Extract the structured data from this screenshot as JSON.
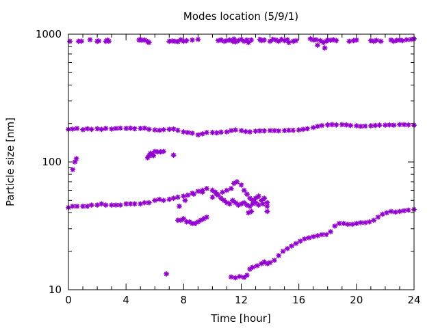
{
  "chart_data": {
    "type": "scatter",
    "title": "Modes location (5/9/1)",
    "xlabel": "Time [hour]",
    "ylabel": "Particle size [nm]",
    "xlim": [
      0,
      24
    ],
    "ylim": [
      10,
      1000
    ],
    "y_scale": "log",
    "x_ticks": [
      0,
      4,
      8,
      12,
      16,
      20,
      24
    ],
    "x_tick_labels": [
      "0",
      "4",
      "8",
      "12",
      "16",
      "20",
      "24"
    ],
    "y_ticks": [
      10,
      100,
      1000
    ],
    "y_tick_labels": [
      "10",
      "100",
      "1000"
    ],
    "grid": false,
    "legend": "none",
    "marker_color": "#9400d3",
    "series": [
      {
        "points": [
          [
            0.1,
            880
          ],
          [
            0.7,
            880
          ],
          [
            0.9,
            882
          ],
          [
            1.5,
            905
          ],
          [
            2.0,
            880
          ],
          [
            2.1,
            885
          ],
          [
            2.6,
            880
          ],
          [
            2.7,
            900
          ],
          [
            2.8,
            882
          ],
          [
            4.9,
            900
          ],
          [
            5.0,
            910
          ],
          [
            5.1,
            895
          ],
          [
            5.3,
            900
          ],
          [
            5.5,
            875
          ],
          [
            5.6,
            860
          ],
          [
            7.0,
            880
          ],
          [
            7.2,
            885
          ],
          [
            7.4,
            880
          ],
          [
            7.6,
            875
          ],
          [
            7.8,
            905
          ],
          [
            8.0,
            880
          ],
          [
            8.2,
            890
          ],
          [
            8.6,
            900
          ],
          [
            9.0,
            910
          ],
          [
            10.4,
            890
          ],
          [
            10.6,
            900
          ],
          [
            10.8,
            880
          ],
          [
            11.0,
            890
          ],
          [
            11.2,
            900
          ],
          [
            11.4,
            880
          ],
          [
            11.5,
            915
          ],
          [
            11.6,
            870
          ],
          [
            11.8,
            890
          ],
          [
            12.0,
            910
          ],
          [
            12.2,
            880
          ],
          [
            12.4,
            900
          ],
          [
            12.5,
            860
          ],
          [
            12.7,
            900
          ],
          [
            13.3,
            910
          ],
          [
            13.4,
            890
          ],
          [
            13.6,
            900
          ],
          [
            14.0,
            880
          ],
          [
            14.2,
            910
          ],
          [
            14.4,
            900
          ],
          [
            14.6,
            880
          ],
          [
            14.8,
            910
          ],
          [
            15.0,
            890
          ],
          [
            15.2,
            905
          ],
          [
            15.3,
            860
          ],
          [
            15.6,
            880
          ],
          [
            15.8,
            890
          ],
          [
            16.8,
            920
          ],
          [
            17.0,
            900
          ],
          [
            17.2,
            905
          ],
          [
            17.3,
            820
          ],
          [
            17.5,
            890
          ],
          [
            17.7,
            860
          ],
          [
            17.8,
            780
          ],
          [
            17.9,
            880
          ],
          [
            18.0,
            900
          ],
          [
            18.2,
            895
          ],
          [
            18.4,
            905
          ],
          [
            18.6,
            890
          ],
          [
            19.5,
            880
          ],
          [
            19.8,
            890
          ],
          [
            20.0,
            900
          ],
          [
            21.0,
            890
          ],
          [
            21.2,
            880
          ],
          [
            21.4,
            895
          ],
          [
            21.7,
            880
          ],
          [
            22.4,
            900
          ],
          [
            22.6,
            880
          ],
          [
            22.8,
            895
          ],
          [
            23.0,
            900
          ],
          [
            23.2,
            890
          ],
          [
            23.5,
            905
          ],
          [
            23.8,
            910
          ],
          [
            24.0,
            920
          ]
        ]
      },
      {
        "points": [
          [
            0.0,
            180
          ],
          [
            0.3,
            181
          ],
          [
            0.6,
            183
          ],
          [
            1.0,
            179
          ],
          [
            1.3,
            182
          ],
          [
            1.6,
            180
          ],
          [
            2.0,
            182
          ],
          [
            2.3,
            180
          ],
          [
            2.6,
            183
          ],
          [
            3.0,
            181
          ],
          [
            3.3,
            183
          ],
          [
            3.6,
            184
          ],
          [
            4.0,
            183
          ],
          [
            4.3,
            184
          ],
          [
            4.6,
            182
          ],
          [
            5.0,
            183
          ],
          [
            5.3,
            184
          ],
          [
            5.6,
            180
          ],
          [
            6.0,
            178
          ],
          [
            6.3,
            177
          ],
          [
            6.6,
            179
          ],
          [
            7.0,
            180
          ],
          [
            7.3,
            181
          ],
          [
            7.6,
            177
          ],
          [
            8.0,
            172
          ],
          [
            8.3,
            170
          ],
          [
            8.6,
            168
          ],
          [
            9.0,
            163
          ],
          [
            9.3,
            166
          ],
          [
            9.6,
            170
          ],
          [
            10.0,
            170
          ],
          [
            10.3,
            169
          ],
          [
            10.6,
            171
          ],
          [
            11.0,
            172
          ],
          [
            11.3,
            176
          ],
          [
            11.6,
            178
          ],
          [
            12.0,
            176
          ],
          [
            12.3,
            173
          ],
          [
            12.6,
            172
          ],
          [
            13.0,
            174
          ],
          [
            13.3,
            175
          ],
          [
            13.6,
            175
          ],
          [
            14.0,
            176
          ],
          [
            14.3,
            176
          ],
          [
            14.6,
            175
          ],
          [
            15.0,
            176
          ],
          [
            15.3,
            177
          ],
          [
            15.6,
            177
          ],
          [
            16.0,
            178
          ],
          [
            16.3,
            180
          ],
          [
            16.6,
            182
          ],
          [
            17.0,
            186
          ],
          [
            17.3,
            190
          ],
          [
            17.6,
            193
          ],
          [
            18.0,
            195
          ],
          [
            18.3,
            196
          ],
          [
            18.6,
            195
          ],
          [
            19.0,
            196
          ],
          [
            19.3,
            195
          ],
          [
            19.6,
            193
          ],
          [
            20.0,
            192
          ],
          [
            20.3,
            190
          ],
          [
            20.6,
            191
          ],
          [
            21.0,
            192
          ],
          [
            21.3,
            193
          ],
          [
            21.6,
            194
          ],
          [
            22.0,
            194
          ],
          [
            22.3,
            195
          ],
          [
            22.6,
            194
          ],
          [
            23.0,
            196
          ],
          [
            23.3,
            196
          ],
          [
            23.6,
            195
          ],
          [
            24.0,
            194
          ]
        ]
      },
      {
        "points": [
          [
            0.3,
            87
          ],
          [
            0.45,
            100
          ],
          [
            0.55,
            106
          ],
          [
            5.5,
            108
          ],
          [
            5.6,
            112
          ],
          [
            5.7,
            117
          ],
          [
            5.8,
            115
          ],
          [
            5.9,
            112
          ],
          [
            6.0,
            121
          ],
          [
            6.2,
            120
          ],
          [
            6.4,
            120
          ],
          [
            6.6,
            121
          ],
          [
            7.3,
            113
          ]
        ]
      },
      {
        "points": [
          [
            0.0,
            44
          ],
          [
            0.3,
            45
          ],
          [
            0.6,
            45
          ],
          [
            1.0,
            45
          ],
          [
            1.3,
            45
          ],
          [
            1.6,
            46
          ],
          [
            2.0,
            46
          ],
          [
            2.3,
            47
          ],
          [
            2.6,
            46
          ],
          [
            3.0,
            46
          ],
          [
            3.3,
            46
          ],
          [
            3.6,
            46
          ],
          [
            4.0,
            47
          ],
          [
            4.3,
            47
          ],
          [
            4.6,
            47
          ],
          [
            5.0,
            47
          ],
          [
            5.3,
            48
          ],
          [
            5.6,
            48
          ],
          [
            6.0,
            50
          ],
          [
            6.3,
            51
          ],
          [
            6.6,
            50
          ],
          [
            7.0,
            51
          ],
          [
            7.3,
            52
          ],
          [
            7.6,
            53
          ],
          [
            8.0,
            54
          ],
          [
            8.3,
            55
          ],
          [
            8.6,
            57
          ],
          [
            9.0,
            59
          ],
          [
            9.3,
            60
          ],
          [
            9.6,
            62
          ],
          [
            10.0,
            60
          ],
          [
            10.2,
            58
          ],
          [
            10.4,
            55
          ],
          [
            10.6,
            52
          ],
          [
            10.8,
            50
          ],
          [
            11.0,
            48
          ],
          [
            11.2,
            47
          ],
          [
            11.4,
            50
          ],
          [
            11.6,
            48
          ],
          [
            11.8,
            46
          ],
          [
            12.0,
            47
          ],
          [
            12.2,
            48
          ],
          [
            12.4,
            46
          ],
          [
            12.6,
            45
          ],
          [
            12.8,
            47
          ],
          [
            13.0,
            48
          ],
          [
            13.2,
            46
          ],
          [
            13.5,
            47
          ],
          [
            13.8,
            45
          ]
        ]
      },
      {
        "points": [
          [
            7.6,
            35
          ],
          [
            7.8,
            35
          ],
          [
            8.0,
            36
          ],
          [
            8.2,
            34
          ],
          [
            8.4,
            34
          ],
          [
            8.6,
            33
          ],
          [
            8.8,
            33
          ],
          [
            9.0,
            34
          ],
          [
            9.2,
            35
          ],
          [
            9.4,
            36
          ],
          [
            9.6,
            37
          ],
          [
            7.7,
            45
          ],
          [
            8.1,
            50
          ],
          [
            8.7,
            56
          ],
          [
            9.3,
            58
          ],
          [
            10.0,
            53
          ],
          [
            10.3,
            56
          ],
          [
            10.7,
            58
          ],
          [
            11.0,
            60
          ],
          [
            11.3,
            62
          ],
          [
            11.5,
            68
          ],
          [
            11.7,
            70
          ],
          [
            12.0,
            66
          ],
          [
            12.2,
            60
          ],
          [
            12.4,
            56
          ],
          [
            12.6,
            52
          ],
          [
            12.8,
            50
          ],
          [
            13.0,
            52
          ],
          [
            13.2,
            54
          ],
          [
            13.4,
            50
          ],
          [
            13.6,
            52
          ],
          [
            13.8,
            48
          ],
          [
            12.5,
            40
          ],
          [
            12.7,
            41
          ],
          [
            13.8,
            41
          ]
        ]
      },
      {
        "points": [
          [
            6.8,
            13.3
          ],
          [
            11.3,
            12.6
          ],
          [
            11.6,
            12.4
          ],
          [
            11.9,
            12.7
          ],
          [
            12.2,
            12.5
          ],
          [
            12.4,
            13.0
          ],
          [
            12.6,
            14.5
          ],
          [
            12.8,
            15.0
          ],
          [
            13.1,
            15.4
          ],
          [
            13.4,
            16.0
          ],
          [
            13.6,
            16.5
          ],
          [
            13.8,
            16.0
          ],
          [
            14.0,
            16.3
          ],
          [
            14.3,
            17.0
          ],
          [
            14.6,
            18.5
          ],
          [
            14.9,
            20.0
          ],
          [
            15.2,
            21.0
          ],
          [
            15.5,
            22.0
          ],
          [
            15.8,
            23.0
          ],
          [
            16.1,
            24.0
          ],
          [
            16.4,
            25.0
          ],
          [
            16.7,
            25.5
          ],
          [
            17.0,
            26.0
          ],
          [
            17.3,
            26.5
          ],
          [
            17.6,
            27.0
          ],
          [
            17.9,
            27.0
          ],
          [
            18.2,
            28.5
          ],
          [
            18.5,
            31.5
          ],
          [
            18.8,
            33.0
          ],
          [
            19.1,
            33.0
          ],
          [
            19.4,
            32.5
          ],
          [
            19.7,
            32.5
          ],
          [
            20.0,
            33.0
          ],
          [
            20.3,
            33.5
          ],
          [
            20.6,
            33.5
          ],
          [
            20.9,
            34.0
          ],
          [
            21.2,
            35.0
          ],
          [
            21.5,
            37.0
          ],
          [
            21.8,
            39.0
          ],
          [
            22.1,
            40.0
          ],
          [
            22.4,
            41.0
          ],
          [
            22.7,
            40.5
          ],
          [
            23.0,
            41.0
          ],
          [
            23.3,
            41.5
          ],
          [
            23.6,
            42.0
          ],
          [
            24.0,
            42.5
          ]
        ]
      }
    ]
  }
}
